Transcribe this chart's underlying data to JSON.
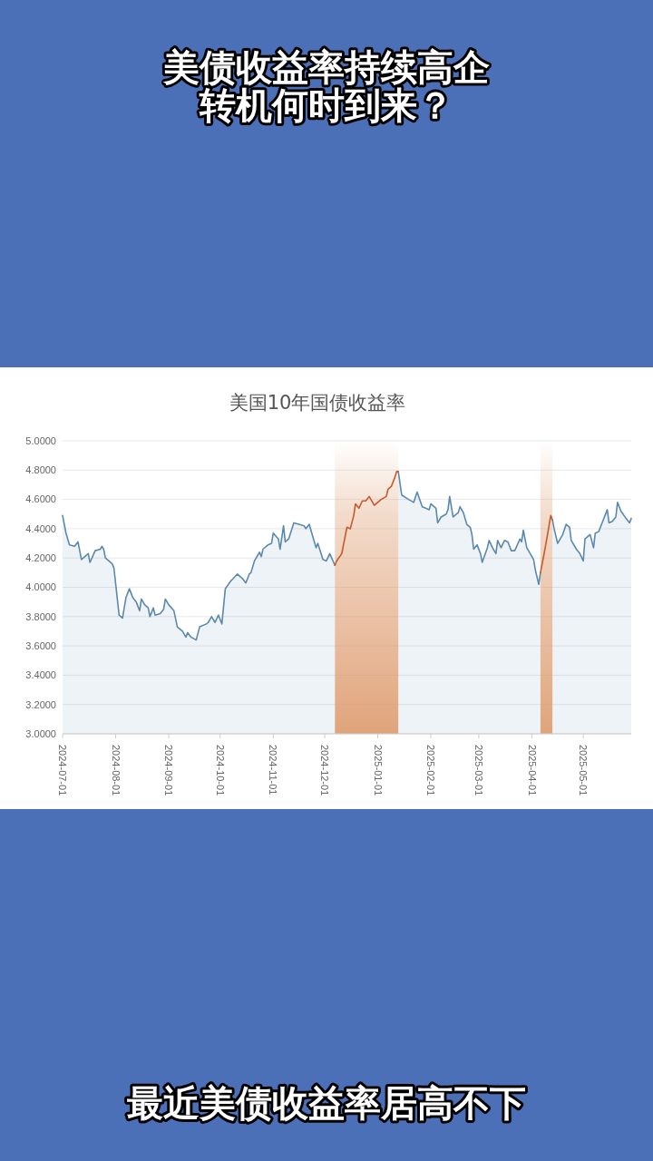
{
  "chart_data": {
    "type": "area",
    "title": "美债收益率持续高企转机何时到来？",
    "subtitle": "美国10年国债收益率",
    "annotations": [
      "最近美债收益率居高不下"
    ],
    "x": [
      "2024-07-01",
      "2024-07-03",
      "2024-07-05",
      "2024-07-08",
      "2024-07-10",
      "2024-07-12",
      "2024-07-16",
      "2024-07-17",
      "2024-07-20",
      "2024-07-23",
      "2024-07-24",
      "2024-07-25",
      "2024-07-26",
      "2024-07-30",
      "2024-07-31",
      "2024-08-03",
      "2024-08-05",
      "2024-08-07",
      "2024-08-09",
      "2024-08-11",
      "2024-08-13",
      "2024-08-15",
      "2024-08-16",
      "2024-08-18",
      "2024-08-20",
      "2024-08-21",
      "2024-08-23",
      "2024-08-24",
      "2024-08-27",
      "2024-08-29",
      "2024-08-30",
      "2024-09-01",
      "2024-09-04",
      "2024-09-06",
      "2024-09-09",
      "2024-09-11",
      "2024-09-12",
      "2024-09-14",
      "2024-09-17",
      "2024-09-19",
      "2024-09-23",
      "2024-09-24",
      "2024-09-26",
      "2024-09-28",
      "2024-09-30",
      "2024-10-02",
      "2024-10-04",
      "2024-10-07",
      "2024-10-11",
      "2024-10-14",
      "2024-10-16",
      "2024-10-18",
      "2024-10-19",
      "2024-10-21",
      "2024-10-24",
      "2024-10-25",
      "2024-10-26",
      "2024-10-29",
      "2024-10-31",
      "2024-11-01",
      "2024-11-04",
      "2024-11-05",
      "2024-11-07",
      "2024-11-08",
      "2024-11-10",
      "2024-11-13",
      "2024-11-16",
      "2024-11-19",
      "2024-11-20",
      "2024-11-22",
      "2024-11-25",
      "2024-11-26",
      "2024-11-27",
      "2024-11-30",
      "2024-12-02",
      "2024-12-04",
      "2024-12-07",
      "2024-12-08",
      "2024-12-11",
      "2024-12-14",
      "2024-12-16",
      "2024-12-18",
      "2024-12-19",
      "2024-12-21",
      "2024-12-23",
      "2024-12-25",
      "2024-12-27",
      "2024-12-29",
      "2024-12-30",
      "2025-01-01",
      "2025-01-03",
      "2025-01-06",
      "2025-01-07",
      "2025-01-09",
      "2025-01-11",
      "2025-01-12",
      "2025-01-13",
      "2025-01-15",
      "2025-01-19",
      "2025-01-22",
      "2025-01-24",
      "2025-01-27",
      "2025-01-29",
      "2025-01-31",
      "2025-02-01",
      "2025-02-04",
      "2025-02-05",
      "2025-02-07",
      "2025-02-10",
      "2025-02-11",
      "2025-02-12",
      "2025-02-14",
      "2025-02-17",
      "2025-02-18",
      "2025-02-20",
      "2025-02-22",
      "2025-02-24",
      "2025-02-25",
      "2025-02-26",
      "2025-02-28",
      "2025-03-02",
      "2025-03-03",
      "2025-03-06",
      "2025-03-07",
      "2025-03-09",
      "2025-03-11",
      "2025-03-12",
      "2025-03-14",
      "2025-03-16",
      "2025-03-18",
      "2025-03-20",
      "2025-03-22",
      "2025-03-25",
      "2025-03-26",
      "2025-03-27",
      "2025-03-29",
      "2025-03-30",
      "2025-04-01",
      "2025-04-02",
      "2025-04-03",
      "2025-04-05",
      "2025-04-06",
      "2025-04-08",
      "2025-04-10",
      "2025-04-12",
      "2025-04-13",
      "2025-04-14",
      "2025-04-16",
      "2025-04-19",
      "2025-04-21",
      "2025-04-23",
      "2025-04-24",
      "2025-04-27",
      "2025-04-29",
      "2025-05-01",
      "2025-05-02",
      "2025-05-05",
      "2025-05-07",
      "2025-05-08",
      "2025-05-10",
      "2025-05-12",
      "2025-05-15",
      "2025-05-16",
      "2025-05-18",
      "2025-05-20",
      "2025-05-21",
      "2025-05-23",
      "2025-05-26",
      "2025-05-28",
      "2025-05-29"
    ],
    "series": [
      {
        "color": "#5b89ae",
        "values": [
          4.49,
          4.37,
          4.29,
          4.28,
          4.31,
          4.19,
          4.23,
          4.17,
          4.25,
          4.26,
          4.28,
          4.26,
          4.2,
          4.16,
          4.13,
          3.81,
          3.79,
          3.93,
          3.99,
          3.93,
          3.9,
          3.84,
          3.92,
          3.88,
          3.86,
          3.8,
          3.86,
          3.81,
          3.82,
          3.85,
          3.92,
          3.88,
          3.84,
          3.73,
          3.7,
          3.66,
          3.69,
          3.66,
          3.64,
          3.73,
          3.75,
          3.76,
          3.8,
          3.76,
          3.81,
          3.75,
          3.99,
          4.04,
          4.09,
          4.06,
          4.03,
          4.09,
          4.1,
          4.18,
          4.24,
          4.21,
          4.26,
          4.29,
          4.3,
          4.37,
          4.33,
          4.26,
          4.42,
          4.31,
          4.33,
          4.44,
          4.43,
          4.42,
          4.4,
          4.43,
          4.31,
          4.27,
          4.3,
          4.19,
          4.18,
          4.23,
          4.15,
          null,
          null,
          null,
          null,
          null,
          null,
          null,
          null,
          null,
          null,
          null,
          null,
          null,
          null,
          null,
          null,
          null,
          null,
          null,
          4.79,
          4.63,
          4.6,
          4.58,
          4.65,
          4.55,
          4.54,
          4.53,
          4.57,
          4.54,
          4.44,
          4.48,
          4.5,
          4.53,
          4.62,
          4.48,
          4.51,
          4.55,
          4.51,
          4.43,
          4.41,
          4.36,
          4.26,
          4.29,
          4.23,
          4.17,
          4.27,
          4.32,
          4.27,
          4.23,
          4.32,
          4.27,
          4.32,
          4.31,
          4.25,
          4.25,
          4.33,
          4.31,
          4.39,
          4.27,
          4.25,
          4.21,
          4.19,
          4.12,
          4.02,
          4.1,
          null,
          null,
          null,
          4.46,
          4.4,
          4.3,
          4.36,
          4.43,
          4.41,
          4.32,
          4.26,
          4.23,
          4.18,
          4.33,
          4.36,
          4.27,
          4.37,
          4.38,
          4.44,
          4.53,
          4.44,
          4.45,
          4.48,
          4.58,
          4.52,
          4.47,
          4.44,
          4.47
        ]
      },
      {
        "type": "line",
        "color": "#c75a2c",
        "x": [
          "2024-12-07",
          "2024-12-08",
          "2024-12-11",
          "2024-12-14",
          "2024-12-16",
          "2024-12-18",
          "2024-12-19",
          "2024-12-21",
          "2024-12-23",
          "2024-12-25",
          "2024-12-27",
          "2024-12-29",
          "2024-12-30",
          "2025-01-01",
          "2025-01-03",
          "2025-01-06",
          "2025-01-07",
          "2025-01-09",
          "2025-01-11",
          "2025-01-12",
          "2025-01-13"
        ],
        "values": [
          4.15,
          4.18,
          4.23,
          4.41,
          4.4,
          4.49,
          4.57,
          4.54,
          4.59,
          4.59,
          4.62,
          4.58,
          4.56,
          4.58,
          4.6,
          4.62,
          4.67,
          4.69,
          4.75,
          4.79,
          4.79
        ]
      },
      {
        "type": "line",
        "color": "#c75a2c",
        "x": [
          "2025-04-06",
          "2025-04-08",
          "2025-04-10",
          "2025-04-12",
          "2025-04-13"
        ],
        "values": [
          4.1,
          4.22,
          4.35,
          4.49,
          4.46
        ]
      }
    ],
    "xlim": [
      "2024-07-01",
      "2025-05-29"
    ],
    "xticks": [
      "2024-07-01",
      "2024-08-01",
      "2024-09-01",
      "2024-10-01",
      "2024-11-01",
      "2024-12-01",
      "2025-01-01",
      "2025-02-01",
      "2025-03-01",
      "2025-04-01",
      "2025-05-01"
    ],
    "ylim": [
      3,
      5
    ],
    "yticks": [
      {
        "value": 3,
        "label": "3.0000"
      },
      {
        "value": 3.2,
        "label": "3.2000"
      },
      {
        "value": 3.4,
        "label": "3.4000"
      },
      {
        "value": 3.6,
        "label": "3.6000"
      },
      {
        "value": 3.8,
        "label": "3.8000"
      },
      {
        "value": 4,
        "label": "4.0000"
      },
      {
        "value": 4.2,
        "label": "4.2000"
      },
      {
        "value": 4.4,
        "label": "4.4000"
      },
      {
        "value": 4.6,
        "label": "4.6000"
      },
      {
        "value": 4.8,
        "label": "4.8000"
      },
      {
        "value": 5,
        "label": "5.0000"
      }
    ],
    "grid": "y",
    "bands": [
      {
        "axis": "x",
        "from": "2024-12-07",
        "to": "2025-01-13",
        "color": "#dd9a6c"
      },
      {
        "axis": "x",
        "from": "2025-04-06",
        "to": "2025-04-13",
        "color": "#dd9a6c"
      }
    ]
  }
}
